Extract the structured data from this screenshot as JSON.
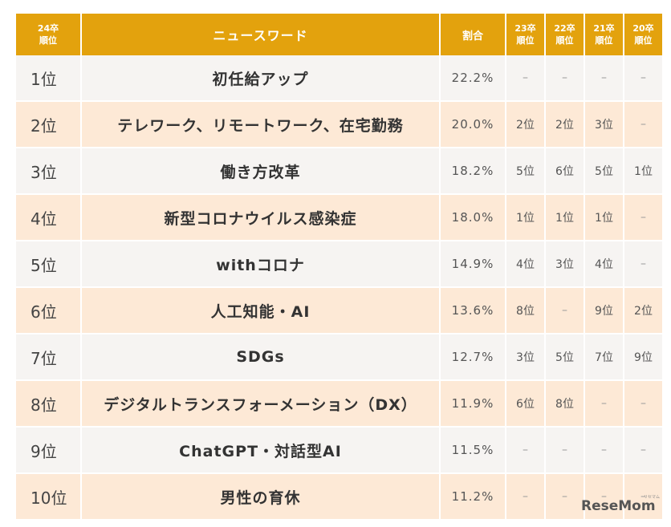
{
  "header": {
    "rank24": [
      "24卒",
      "順位"
    ],
    "word": "ニュースワード",
    "ratio": "割合",
    "rank23": [
      "23卒",
      "順位"
    ],
    "rank22": [
      "22卒",
      "順位"
    ],
    "rank21": [
      "21卒",
      "順位"
    ],
    "rank20": [
      "20卒",
      "順位"
    ]
  },
  "rows": [
    {
      "rank": "1位",
      "word": "初任給アップ",
      "ratio": "22.2%",
      "r23": "–",
      "r22": "–",
      "r21": "–",
      "r20": "–"
    },
    {
      "rank": "2位",
      "word": "テレワーク、リモートワーク、在宅勤務",
      "ratio": "20.0%",
      "r23": "2位",
      "r22": "2位",
      "r21": "3位",
      "r20": "–"
    },
    {
      "rank": "3位",
      "word": "働き方改革",
      "ratio": "18.2%",
      "r23": "5位",
      "r22": "6位",
      "r21": "5位",
      "r20": "1位"
    },
    {
      "rank": "4位",
      "word": "新型コロナウイルス感染症",
      "ratio": "18.0%",
      "r23": "1位",
      "r22": "1位",
      "r21": "1位",
      "r20": "–"
    },
    {
      "rank": "5位",
      "word": "withコロナ",
      "ratio": "14.9%",
      "r23": "4位",
      "r22": "3位",
      "r21": "4位",
      "r20": "–"
    },
    {
      "rank": "6位",
      "word": "人工知能・AI",
      "ratio": "13.6%",
      "r23": "8位",
      "r22": "–",
      "r21": "9位",
      "r20": "2位"
    },
    {
      "rank": "7位",
      "word": "SDGs",
      "ratio": "12.7%",
      "r23": "3位",
      "r22": "5位",
      "r21": "7位",
      "r20": "9位"
    },
    {
      "rank": "8位",
      "word": "デジタルトランスフォーメーション（DX）",
      "ratio": "11.9%",
      "r23": "6位",
      "r22": "8位",
      "r21": "–",
      "r20": "–"
    },
    {
      "rank": "9位",
      "word": "ChatGPT・対話型AI",
      "ratio": "11.5%",
      "r23": "–",
      "r22": "–",
      "r21": "–",
      "r20": "–"
    },
    {
      "rank": "10位",
      "word": "男性の育休",
      "ratio": "11.2%",
      "r23": "–",
      "r22": "–",
      "r21": "–",
      "r20": "–"
    }
  ],
  "watermark": {
    "logo": "ReseMom",
    "sub": "リセマム"
  }
}
